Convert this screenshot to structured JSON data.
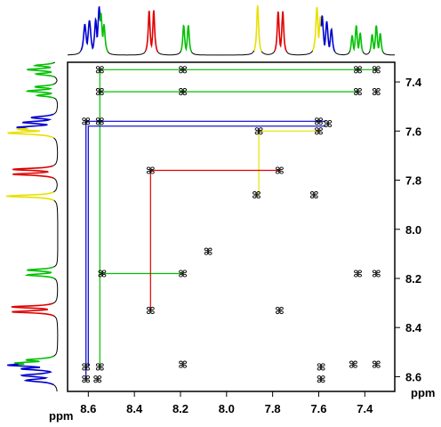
{
  "chart_data": {
    "type": "scatter",
    "title": "",
    "xlabel": "ppm",
    "ylabel": "ppm",
    "xlim": [
      8.69,
      7.27
    ],
    "ylim": [
      7.32,
      8.66
    ],
    "x_ticks": [
      8.6,
      8.4,
      8.2,
      8.0,
      7.8,
      7.6,
      7.4
    ],
    "x_tick_labels": [
      "8.6",
      "8.4",
      "8.2",
      "8.0",
      "7.8",
      "7.6",
      "7.4"
    ],
    "y_ticks": [
      7.4,
      7.6,
      7.8,
      8.0,
      8.2,
      8.4,
      8.6
    ],
    "y_tick_labels": [
      "7.4",
      "7.6",
      "7.8",
      "8.0",
      "8.2",
      "8.4",
      "8.6"
    ],
    "spin_system_colors": {
      "green": "#00c000",
      "red": "#e00000",
      "blue": "#0000d0",
      "yellow": "#e8e000",
      "black": "#000000"
    },
    "projection_peaks": [
      {
        "shift": 8.615,
        "height": 0.62,
        "width": 0.007,
        "color": "blue"
      },
      {
        "shift": 8.595,
        "height": 0.7,
        "width": 0.007,
        "color": "blue"
      },
      {
        "shift": 8.568,
        "height": 0.72,
        "width": 0.006,
        "color": "blue"
      },
      {
        "shift": 8.553,
        "height": 0.98,
        "width": 0.006,
        "color": "blue"
      },
      {
        "shift": 8.545,
        "height": 0.85,
        "width": 0.006,
        "color": "green"
      },
      {
        "shift": 8.532,
        "height": 0.62,
        "width": 0.006,
        "color": "green"
      },
      {
        "shift": 8.336,
        "height": 0.9,
        "width": 0.005,
        "color": "red"
      },
      {
        "shift": 8.316,
        "height": 0.9,
        "width": 0.005,
        "color": "red"
      },
      {
        "shift": 8.186,
        "height": 0.6,
        "width": 0.005,
        "color": "green"
      },
      {
        "shift": 8.166,
        "height": 0.6,
        "width": 0.005,
        "color": "green"
      },
      {
        "shift": 7.865,
        "height": 1.0,
        "width": 0.005,
        "color": "yellow"
      },
      {
        "shift": 7.776,
        "height": 0.88,
        "width": 0.005,
        "color": "red"
      },
      {
        "shift": 7.756,
        "height": 0.88,
        "width": 0.005,
        "color": "red"
      },
      {
        "shift": 7.608,
        "height": 0.97,
        "width": 0.006,
        "color": "yellow"
      },
      {
        "shift": 7.593,
        "height": 0.78,
        "width": 0.006,
        "color": "yellow"
      },
      {
        "shift": 7.585,
        "height": 0.8,
        "width": 0.006,
        "color": "blue"
      },
      {
        "shift": 7.565,
        "height": 0.68,
        "width": 0.006,
        "color": "blue"
      },
      {
        "shift": 7.545,
        "height": 0.52,
        "width": 0.006,
        "color": "blue"
      },
      {
        "shift": 7.455,
        "height": 0.4,
        "width": 0.005,
        "color": "green"
      },
      {
        "shift": 7.437,
        "height": 0.6,
        "width": 0.005,
        "color": "green"
      },
      {
        "shift": 7.42,
        "height": 0.45,
        "width": 0.005,
        "color": "green"
      },
      {
        "shift": 7.368,
        "height": 0.42,
        "width": 0.005,
        "color": "green"
      },
      {
        "shift": 7.35,
        "height": 0.6,
        "width": 0.005,
        "color": "green"
      },
      {
        "shift": 7.333,
        "height": 0.44,
        "width": 0.005,
        "color": "green"
      }
    ],
    "cross_peaks": [
      {
        "x": 8.55,
        "y": 7.35
      },
      {
        "x": 8.19,
        "y": 7.35
      },
      {
        "x": 7.43,
        "y": 7.35
      },
      {
        "x": 7.35,
        "y": 7.35
      },
      {
        "x": 8.55,
        "y": 7.44
      },
      {
        "x": 8.19,
        "y": 7.44
      },
      {
        "x": 7.43,
        "y": 7.44
      },
      {
        "x": 7.35,
        "y": 7.44
      },
      {
        "x": 8.61,
        "y": 7.56
      },
      {
        "x": 8.55,
        "y": 7.56
      },
      {
        "x": 7.6,
        "y": 7.56
      },
      {
        "x": 7.56,
        "y": 7.57
      },
      {
        "x": 7.86,
        "y": 7.6
      },
      {
        "x": 7.6,
        "y": 7.6
      },
      {
        "x": 8.33,
        "y": 7.76
      },
      {
        "x": 7.77,
        "y": 7.76
      },
      {
        "x": 7.87,
        "y": 7.86
      },
      {
        "x": 7.62,
        "y": 7.86
      },
      {
        "x": 8.08,
        "y": 8.09
      },
      {
        "x": 8.54,
        "y": 8.18
      },
      {
        "x": 8.19,
        "y": 8.18
      },
      {
        "x": 7.43,
        "y": 8.18
      },
      {
        "x": 7.35,
        "y": 8.18
      },
      {
        "x": 8.33,
        "y": 8.33
      },
      {
        "x": 7.77,
        "y": 8.33
      },
      {
        "x": 8.61,
        "y": 8.56
      },
      {
        "x": 8.55,
        "y": 8.56
      },
      {
        "x": 8.19,
        "y": 8.55
      },
      {
        "x": 7.59,
        "y": 8.56
      },
      {
        "x": 7.45,
        "y": 8.55
      },
      {
        "x": 7.35,
        "y": 8.55
      },
      {
        "x": 8.61,
        "y": 8.61
      },
      {
        "x": 8.56,
        "y": 8.61
      },
      {
        "x": 7.59,
        "y": 8.61
      }
    ],
    "correlation_paths": [
      {
        "color": "green",
        "points": [
          [
            7.35,
            7.35
          ],
          [
            8.55,
            7.35
          ],
          [
            8.55,
            8.18
          ],
          [
            8.19,
            8.18
          ]
        ]
      },
      {
        "color": "green",
        "points": [
          [
            7.43,
            7.44
          ],
          [
            8.55,
            7.44
          ]
        ]
      },
      {
        "color": "green",
        "points": [
          [
            8.55,
            8.18
          ],
          [
            8.55,
            8.56
          ]
        ]
      },
      {
        "color": "blue",
        "points": [
          [
            7.57,
            7.56
          ],
          [
            8.61,
            7.56
          ],
          [
            8.61,
            8.61
          ]
        ]
      },
      {
        "color": "blue",
        "points": [
          [
            7.57,
            7.58
          ],
          [
            8.6,
            7.58
          ],
          [
            8.6,
            8.56
          ]
        ]
      },
      {
        "color": "yellow",
        "points": [
          [
            7.6,
            7.6
          ],
          [
            7.86,
            7.6
          ],
          [
            7.86,
            7.86
          ]
        ]
      },
      {
        "color": "red",
        "points": [
          [
            7.77,
            7.76
          ],
          [
            8.33,
            7.76
          ],
          [
            8.33,
            8.33
          ]
        ]
      }
    ]
  }
}
